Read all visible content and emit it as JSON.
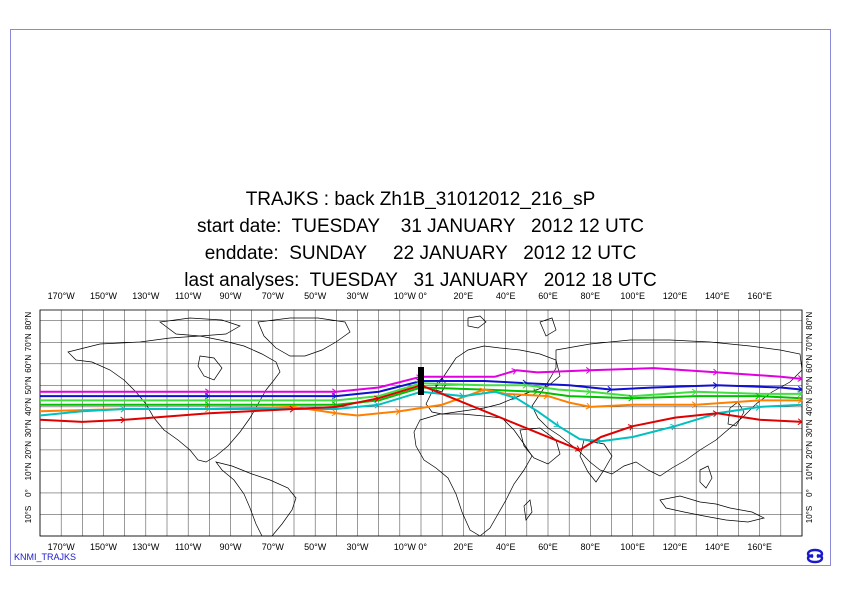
{
  "title": {
    "line1": "TRAJKS : back Zh1B_31012012_216_sP",
    "line2": "start date:  TUESDAY    31 JANUARY   2012 12 UTC",
    "line3": "enddate:  SUNDAY     22 JANUARY   2012 12 UTC",
    "line4": "last analyses:  TUESDAY   31 JANUARY   2012 18 UTC"
  },
  "footer_label": "KNMI_TRAJKS",
  "map": {
    "projection": "equirectangular",
    "lon_range": [
      -180,
      180
    ],
    "lat_range": [
      -20,
      85
    ],
    "grid_step_deg": 10,
    "lon_labels": [
      "170°W",
      "150°W",
      "130°W",
      "110°W",
      "90°W",
      "70°W",
      "50°W",
      "30°W",
      "10°W 0°",
      "20°E",
      "40°E",
      "60°E",
      "80°E",
      "100°E",
      "120°E",
      "140°E",
      "160°E"
    ],
    "lat_labels_left": [
      "80°N",
      "70°N",
      "60°N",
      "50°N",
      "40°N",
      "30°N",
      "20°N",
      "10°N",
      "0°",
      "10°S"
    ],
    "lat_labels_right": [
      "80°N",
      "70°N",
      "60°N",
      "50°N",
      "40°N",
      "30°N",
      "20°N",
      "10°N",
      "0°",
      "10°S"
    ],
    "start_point": {
      "lon": 0,
      "lat": 52
    }
  },
  "chart_data": {
    "type": "line",
    "x_label": "",
    "y_label": "",
    "series": [
      {
        "color": "#e000e0",
        "points": [
          [
            -180,
            47
          ],
          [
            -140,
            47
          ],
          [
            -100,
            47
          ],
          [
            -60,
            47
          ],
          [
            -40,
            47
          ],
          [
            -20,
            49
          ],
          [
            0,
            54
          ],
          [
            35,
            54
          ],
          [
            45,
            57
          ],
          [
            55,
            56
          ],
          [
            80,
            57
          ],
          [
            110,
            58
          ],
          [
            140,
            56
          ],
          [
            170,
            54
          ],
          [
            180,
            53
          ]
        ]
      },
      {
        "color": "#1010d0",
        "points": [
          [
            -180,
            45
          ],
          [
            -140,
            45
          ],
          [
            -100,
            45
          ],
          [
            -60,
            45
          ],
          [
            -40,
            45
          ],
          [
            -20,
            47
          ],
          [
            0,
            52
          ],
          [
            30,
            52
          ],
          [
            50,
            51
          ],
          [
            70,
            50
          ],
          [
            90,
            48
          ],
          [
            110,
            49
          ],
          [
            140,
            50
          ],
          [
            170,
            49
          ],
          [
            180,
            48
          ]
        ]
      },
      {
        "color": "#40e040",
        "points": [
          [
            -180,
            43
          ],
          [
            -140,
            43
          ],
          [
            -100,
            43
          ],
          [
            -60,
            43
          ],
          [
            -40,
            43
          ],
          [
            -20,
            45
          ],
          [
            0,
            51
          ],
          [
            30,
            50
          ],
          [
            50,
            50
          ],
          [
            65,
            48
          ],
          [
            80,
            47
          ],
          [
            100,
            45
          ],
          [
            130,
            47
          ],
          [
            160,
            46
          ],
          [
            180,
            46
          ]
        ]
      },
      {
        "color": "#00c000",
        "points": [
          [
            -180,
            41
          ],
          [
            -140,
            41
          ],
          [
            -100,
            41
          ],
          [
            -60,
            41
          ],
          [
            -40,
            41
          ],
          [
            -20,
            43
          ],
          [
            0,
            49
          ],
          [
            30,
            48
          ],
          [
            55,
            47
          ],
          [
            70,
            45
          ],
          [
            100,
            44
          ],
          [
            130,
            45
          ],
          [
            160,
            45
          ],
          [
            180,
            44
          ]
        ]
      },
      {
        "color": "#ff8000",
        "points": [
          [
            -180,
            38
          ],
          [
            -140,
            39
          ],
          [
            -100,
            39
          ],
          [
            -60,
            40
          ],
          [
            -40,
            37
          ],
          [
            -30,
            36
          ],
          [
            -10,
            38
          ],
          [
            10,
            41
          ],
          [
            30,
            48
          ],
          [
            40,
            46
          ],
          [
            60,
            45
          ],
          [
            70,
            42
          ],
          [
            80,
            40
          ],
          [
            100,
            41
          ],
          [
            130,
            41
          ],
          [
            160,
            43
          ],
          [
            180,
            43
          ]
        ]
      },
      {
        "color": "#00c0c0",
        "points": [
          [
            -180,
            36
          ],
          [
            -160,
            38
          ],
          [
            -140,
            39
          ],
          [
            -100,
            39
          ],
          [
            -60,
            39
          ],
          [
            -40,
            39
          ],
          [
            -20,
            41
          ],
          [
            0,
            47
          ],
          [
            20,
            45
          ],
          [
            35,
            47
          ],
          [
            45,
            44
          ],
          [
            55,
            38
          ],
          [
            65,
            31
          ],
          [
            75,
            25
          ],
          [
            85,
            24
          ],
          [
            100,
            26
          ],
          [
            120,
            31
          ],
          [
            140,
            37
          ],
          [
            160,
            40
          ],
          [
            180,
            41
          ]
        ]
      },
      {
        "color": "#e00000",
        "points": [
          [
            -180,
            34
          ],
          [
            -160,
            33
          ],
          [
            -140,
            34
          ],
          [
            -100,
            37
          ],
          [
            -60,
            39
          ],
          [
            -40,
            40
          ],
          [
            -20,
            44
          ],
          [
            0,
            50
          ],
          [
            75,
            20
          ],
          [
            85,
            26
          ],
          [
            100,
            31
          ],
          [
            120,
            35
          ],
          [
            140,
            37
          ],
          [
            160,
            34
          ],
          [
            180,
            33
          ]
        ]
      }
    ]
  }
}
